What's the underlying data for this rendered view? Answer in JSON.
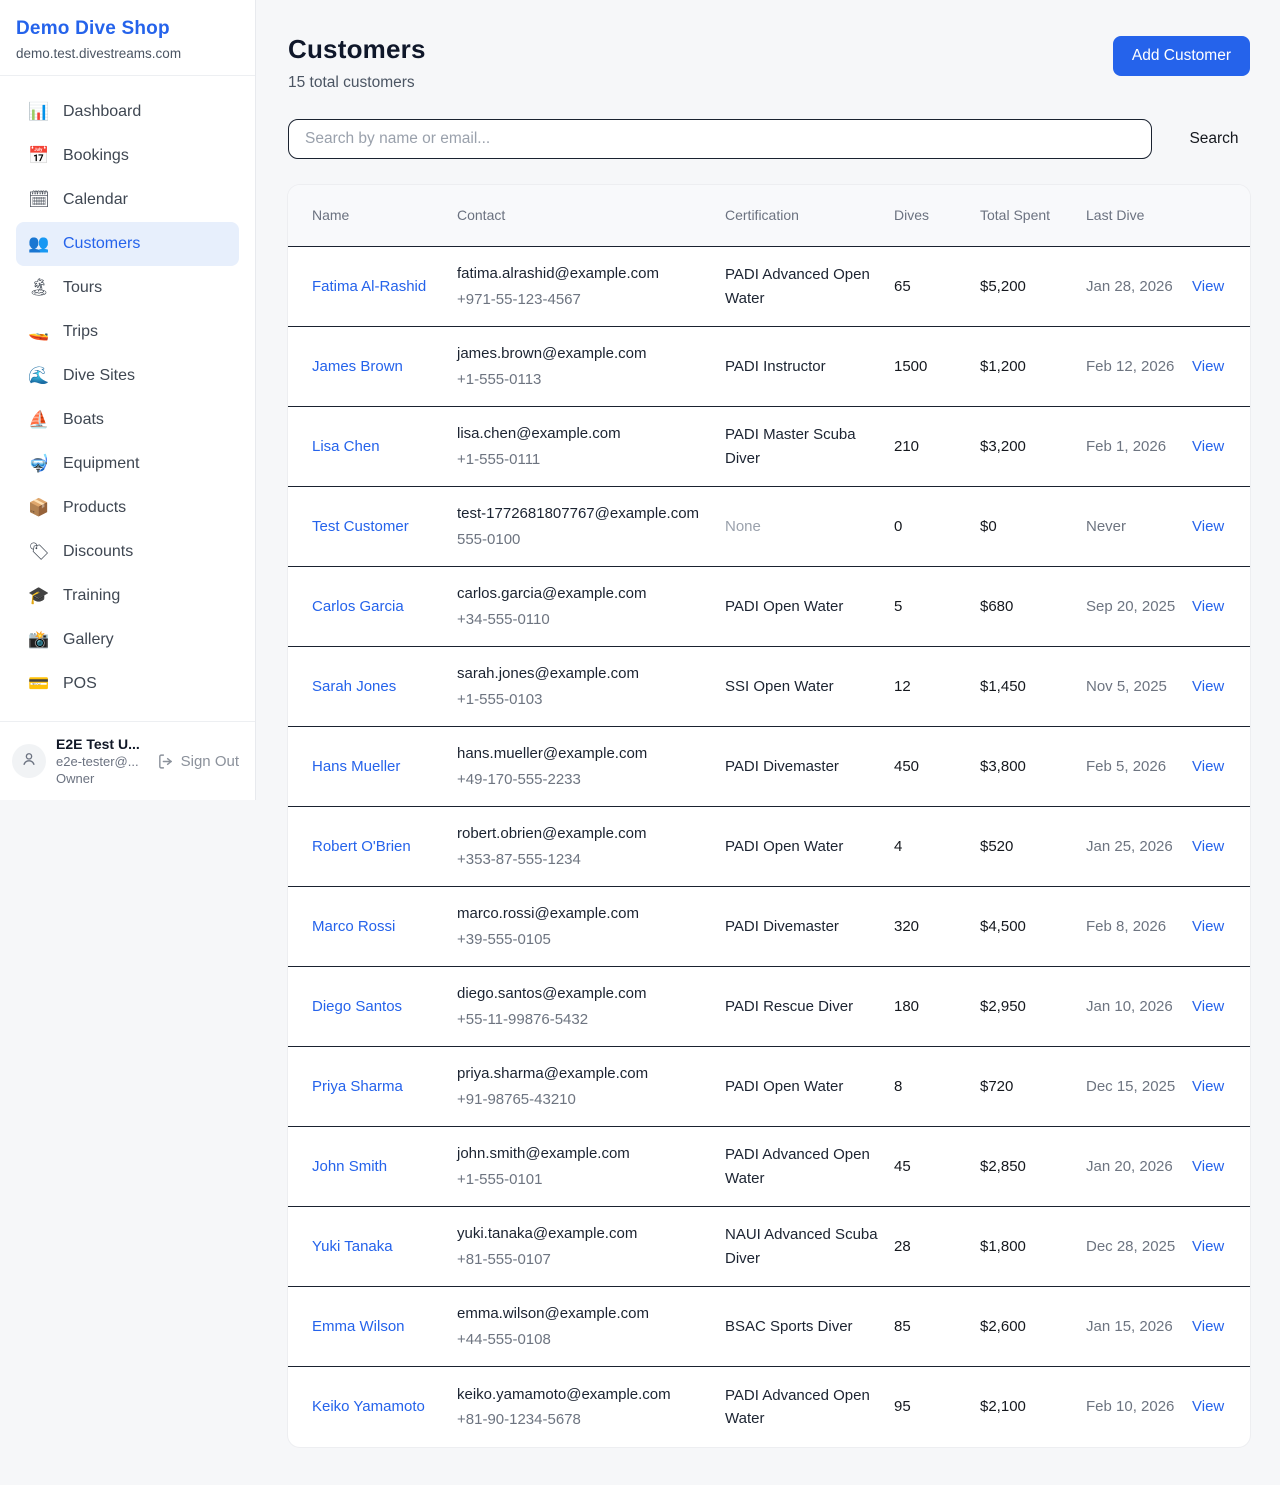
{
  "colors": {
    "accent": "#2563eb",
    "active_nav_bg": "#e7effc",
    "row_divider": "#1a2230",
    "muted_text": "#9aa1ac"
  },
  "sidebar": {
    "brand": {
      "name": "Demo Dive Shop",
      "domain": "demo.test.divestreams.com"
    },
    "nav": [
      {
        "label": "Dashboard",
        "icon": "bar-chart-icon",
        "glyph": "📊",
        "active": false
      },
      {
        "label": "Bookings",
        "icon": "calendar-date-icon",
        "glyph": "📅",
        "active": false
      },
      {
        "label": "Calendar",
        "icon": "calendar-pad-icon",
        "glyph": "🗓",
        "active": false
      },
      {
        "label": "Customers",
        "icon": "people-icon",
        "glyph": "👥",
        "active": true
      },
      {
        "label": "Tours",
        "icon": "island-icon",
        "glyph": "🏝",
        "active": false
      },
      {
        "label": "Trips",
        "icon": "speedboat-icon",
        "glyph": "🚤",
        "active": false
      },
      {
        "label": "Dive Sites",
        "icon": "wave-icon",
        "glyph": "🌊",
        "active": false
      },
      {
        "label": "Boats",
        "icon": "sailboat-icon",
        "glyph": "⛵",
        "active": false
      },
      {
        "label": "Equipment",
        "icon": "diving-mask-icon",
        "glyph": "🤿",
        "active": false
      },
      {
        "label": "Products",
        "icon": "package-icon",
        "glyph": "📦",
        "active": false
      },
      {
        "label": "Discounts",
        "icon": "tag-icon",
        "glyph": "🏷",
        "active": false
      },
      {
        "label": "Training",
        "icon": "graduation-cap-icon",
        "glyph": "🎓",
        "active": false
      },
      {
        "label": "Gallery",
        "icon": "camera-icon",
        "glyph": "📸",
        "active": false
      },
      {
        "label": "POS",
        "icon": "credit-card-icon",
        "glyph": "💳",
        "active": false
      }
    ],
    "user": {
      "name": "E2E Test U...",
      "email": "e2e-tester@...",
      "role": "Owner",
      "sign_out_label": "Sign Out"
    }
  },
  "header": {
    "title": "Customers",
    "subtitle": "15 total customers",
    "add_button_label": "Add Customer"
  },
  "search": {
    "placeholder": "Search by name or email...",
    "button_label": "Search"
  },
  "table": {
    "columns": [
      "Name",
      "Contact",
      "Certification",
      "Dives",
      "Total Spent",
      "Last Dive"
    ],
    "view_label": "View",
    "rows": [
      {
        "name": "Fatima Al-Rashid",
        "email": "fatima.alrashid@example.com",
        "phone": "+971-55-123-4567",
        "certification": "PADI Advanced Open Water",
        "dives": "65",
        "total_spent": "$5,200",
        "last_dive": "Jan 28, 2026"
      },
      {
        "name": "James Brown",
        "email": "james.brown@example.com",
        "phone": "+1-555-0113",
        "certification": "PADI Instructor",
        "dives": "1500",
        "total_spent": "$1,200",
        "last_dive": "Feb 12, 2026"
      },
      {
        "name": "Lisa Chen",
        "email": "lisa.chen@example.com",
        "phone": "+1-555-0111",
        "certification": "PADI Master Scuba Diver",
        "dives": "210",
        "total_spent": "$3,200",
        "last_dive": "Feb 1, 2026"
      },
      {
        "name": "Test Customer",
        "email": "test-1772681807767@example.com",
        "phone": "555-0100",
        "certification": "None",
        "dives": "0",
        "total_spent": "$0",
        "last_dive": "Never"
      },
      {
        "name": "Carlos Garcia",
        "email": "carlos.garcia@example.com",
        "phone": "+34-555-0110",
        "certification": "PADI Open Water",
        "dives": "5",
        "total_spent": "$680",
        "last_dive": "Sep 20, 2025"
      },
      {
        "name": "Sarah Jones",
        "email": "sarah.jones@example.com",
        "phone": "+1-555-0103",
        "certification": "SSI Open Water",
        "dives": "12",
        "total_spent": "$1,450",
        "last_dive": "Nov 5, 2025"
      },
      {
        "name": "Hans Mueller",
        "email": "hans.mueller@example.com",
        "phone": "+49-170-555-2233",
        "certification": "PADI Divemaster",
        "dives": "450",
        "total_spent": "$3,800",
        "last_dive": "Feb 5, 2026"
      },
      {
        "name": "Robert O'Brien",
        "email": "robert.obrien@example.com",
        "phone": "+353-87-555-1234",
        "certification": "PADI Open Water",
        "dives": "4",
        "total_spent": "$520",
        "last_dive": "Jan 25, 2026"
      },
      {
        "name": "Marco Rossi",
        "email": "marco.rossi@example.com",
        "phone": "+39-555-0105",
        "certification": "PADI Divemaster",
        "dives": "320",
        "total_spent": "$4,500",
        "last_dive": "Feb 8, 2026"
      },
      {
        "name": "Diego Santos",
        "email": "diego.santos@example.com",
        "phone": "+55-11-99876-5432",
        "certification": "PADI Rescue Diver",
        "dives": "180",
        "total_spent": "$2,950",
        "last_dive": "Jan 10, 2026"
      },
      {
        "name": "Priya Sharma",
        "email": "priya.sharma@example.com",
        "phone": "+91-98765-43210",
        "certification": "PADI Open Water",
        "dives": "8",
        "total_spent": "$720",
        "last_dive": "Dec 15, 2025"
      },
      {
        "name": "John Smith",
        "email": "john.smith@example.com",
        "phone": "+1-555-0101",
        "certification": "PADI Advanced Open Water",
        "dives": "45",
        "total_spent": "$2,850",
        "last_dive": "Jan 20, 2026"
      },
      {
        "name": "Yuki Tanaka",
        "email": "yuki.tanaka@example.com",
        "phone": "+81-555-0107",
        "certification": "NAUI Advanced Scuba Diver",
        "dives": "28",
        "total_spent": "$1,800",
        "last_dive": "Dec 28, 2025"
      },
      {
        "name": "Emma Wilson",
        "email": "emma.wilson@example.com",
        "phone": "+44-555-0108",
        "certification": "BSAC Sports Diver",
        "dives": "85",
        "total_spent": "$2,600",
        "last_dive": "Jan 15, 2026"
      },
      {
        "name": "Keiko Yamamoto",
        "email": "keiko.yamamoto@example.com",
        "phone": "+81-90-1234-5678",
        "certification": "PADI Advanced Open Water",
        "dives": "95",
        "total_spent": "$2,100",
        "last_dive": "Feb 10, 2026"
      }
    ]
  }
}
